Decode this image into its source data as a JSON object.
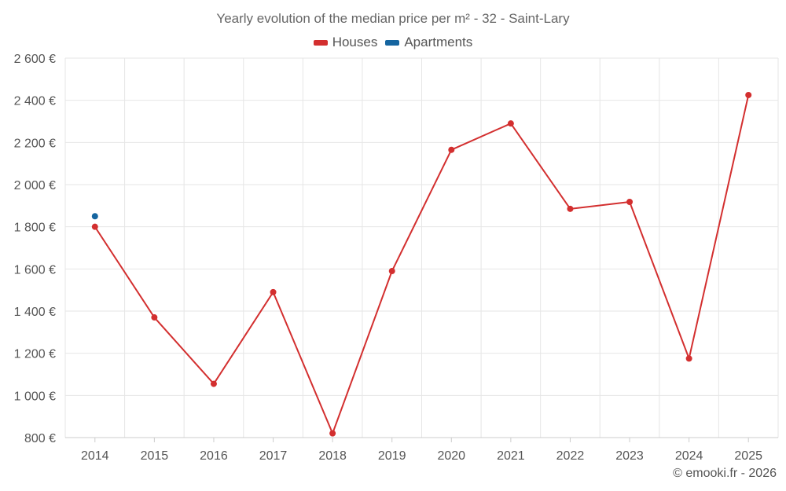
{
  "chart_data": {
    "type": "line",
    "title": "Yearly evolution of the median price per m² - 32 - Saint-Lary",
    "categories": [
      "2014",
      "2015",
      "2016",
      "2017",
      "2018",
      "2019",
      "2020",
      "2021",
      "2022",
      "2023",
      "2024",
      "2025"
    ],
    "series": [
      {
        "name": "Houses",
        "color": "#d32f2f",
        "values": [
          1800,
          1370,
          1055,
          1490,
          820,
          1590,
          2165,
          2290,
          1885,
          1918,
          1175,
          2425
        ]
      },
      {
        "name": "Apartments",
        "color": "#1565a0",
        "values": [
          1850,
          null,
          null,
          null,
          null,
          null,
          null,
          null,
          null,
          null,
          null,
          null
        ]
      }
    ],
    "y_ticks": [
      800,
      1000,
      1200,
      1400,
      1600,
      1800,
      2000,
      2200,
      2400,
      2600
    ],
    "y_tick_labels": [
      "800 €",
      "1 000 €",
      "1 200 €",
      "1 400 €",
      "1 600 €",
      "1 800 €",
      "2 000 €",
      "2 200 €",
      "2 400 €",
      "2 600 €"
    ],
    "ylim": [
      800,
      2600
    ],
    "xlabel": "",
    "ylabel": "",
    "grid": true,
    "legend_position": "top-center"
  },
  "credit": "© emooki.fr - 2026"
}
